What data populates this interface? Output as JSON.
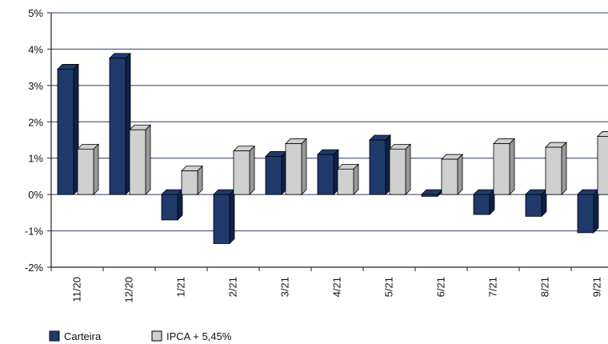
{
  "chart_data": {
    "type": "bar",
    "categories": [
      "11/20",
      "12/20",
      "1/21",
      "2/21",
      "3/21",
      "4/21",
      "5/21",
      "6/21",
      "7/21",
      "8/21",
      "9/21"
    ],
    "series": [
      {
        "name": "Carteira",
        "values": [
          3.45,
          3.75,
          -0.7,
          -1.35,
          1.05,
          1.1,
          1.5,
          -0.05,
          -0.55,
          -0.6,
          -1.05
        ]
      },
      {
        "name": "IPCA + 5,45%",
        "values": [
          1.25,
          1.78,
          0.65,
          1.2,
          1.4,
          0.7,
          1.25,
          0.97,
          1.4,
          1.3,
          1.6
        ]
      }
    ],
    "title": "",
    "xlabel": "",
    "ylabel": "",
    "ylim": [
      -2,
      5
    ],
    "yticks": [
      "-2%",
      "-1%",
      "0%",
      "1%",
      "2%",
      "3%",
      "4%",
      "5%"
    ],
    "grid": true,
    "legend_position": "bottom-left",
    "colors": {
      "Carteira": "#1f3a6b",
      "Carteira_side": "#0f2147",
      "IPCA": "#cfcfcf",
      "IPCA_side": "#9a9a9a",
      "grid": "#2b3f66",
      "axis": "#222222"
    }
  }
}
